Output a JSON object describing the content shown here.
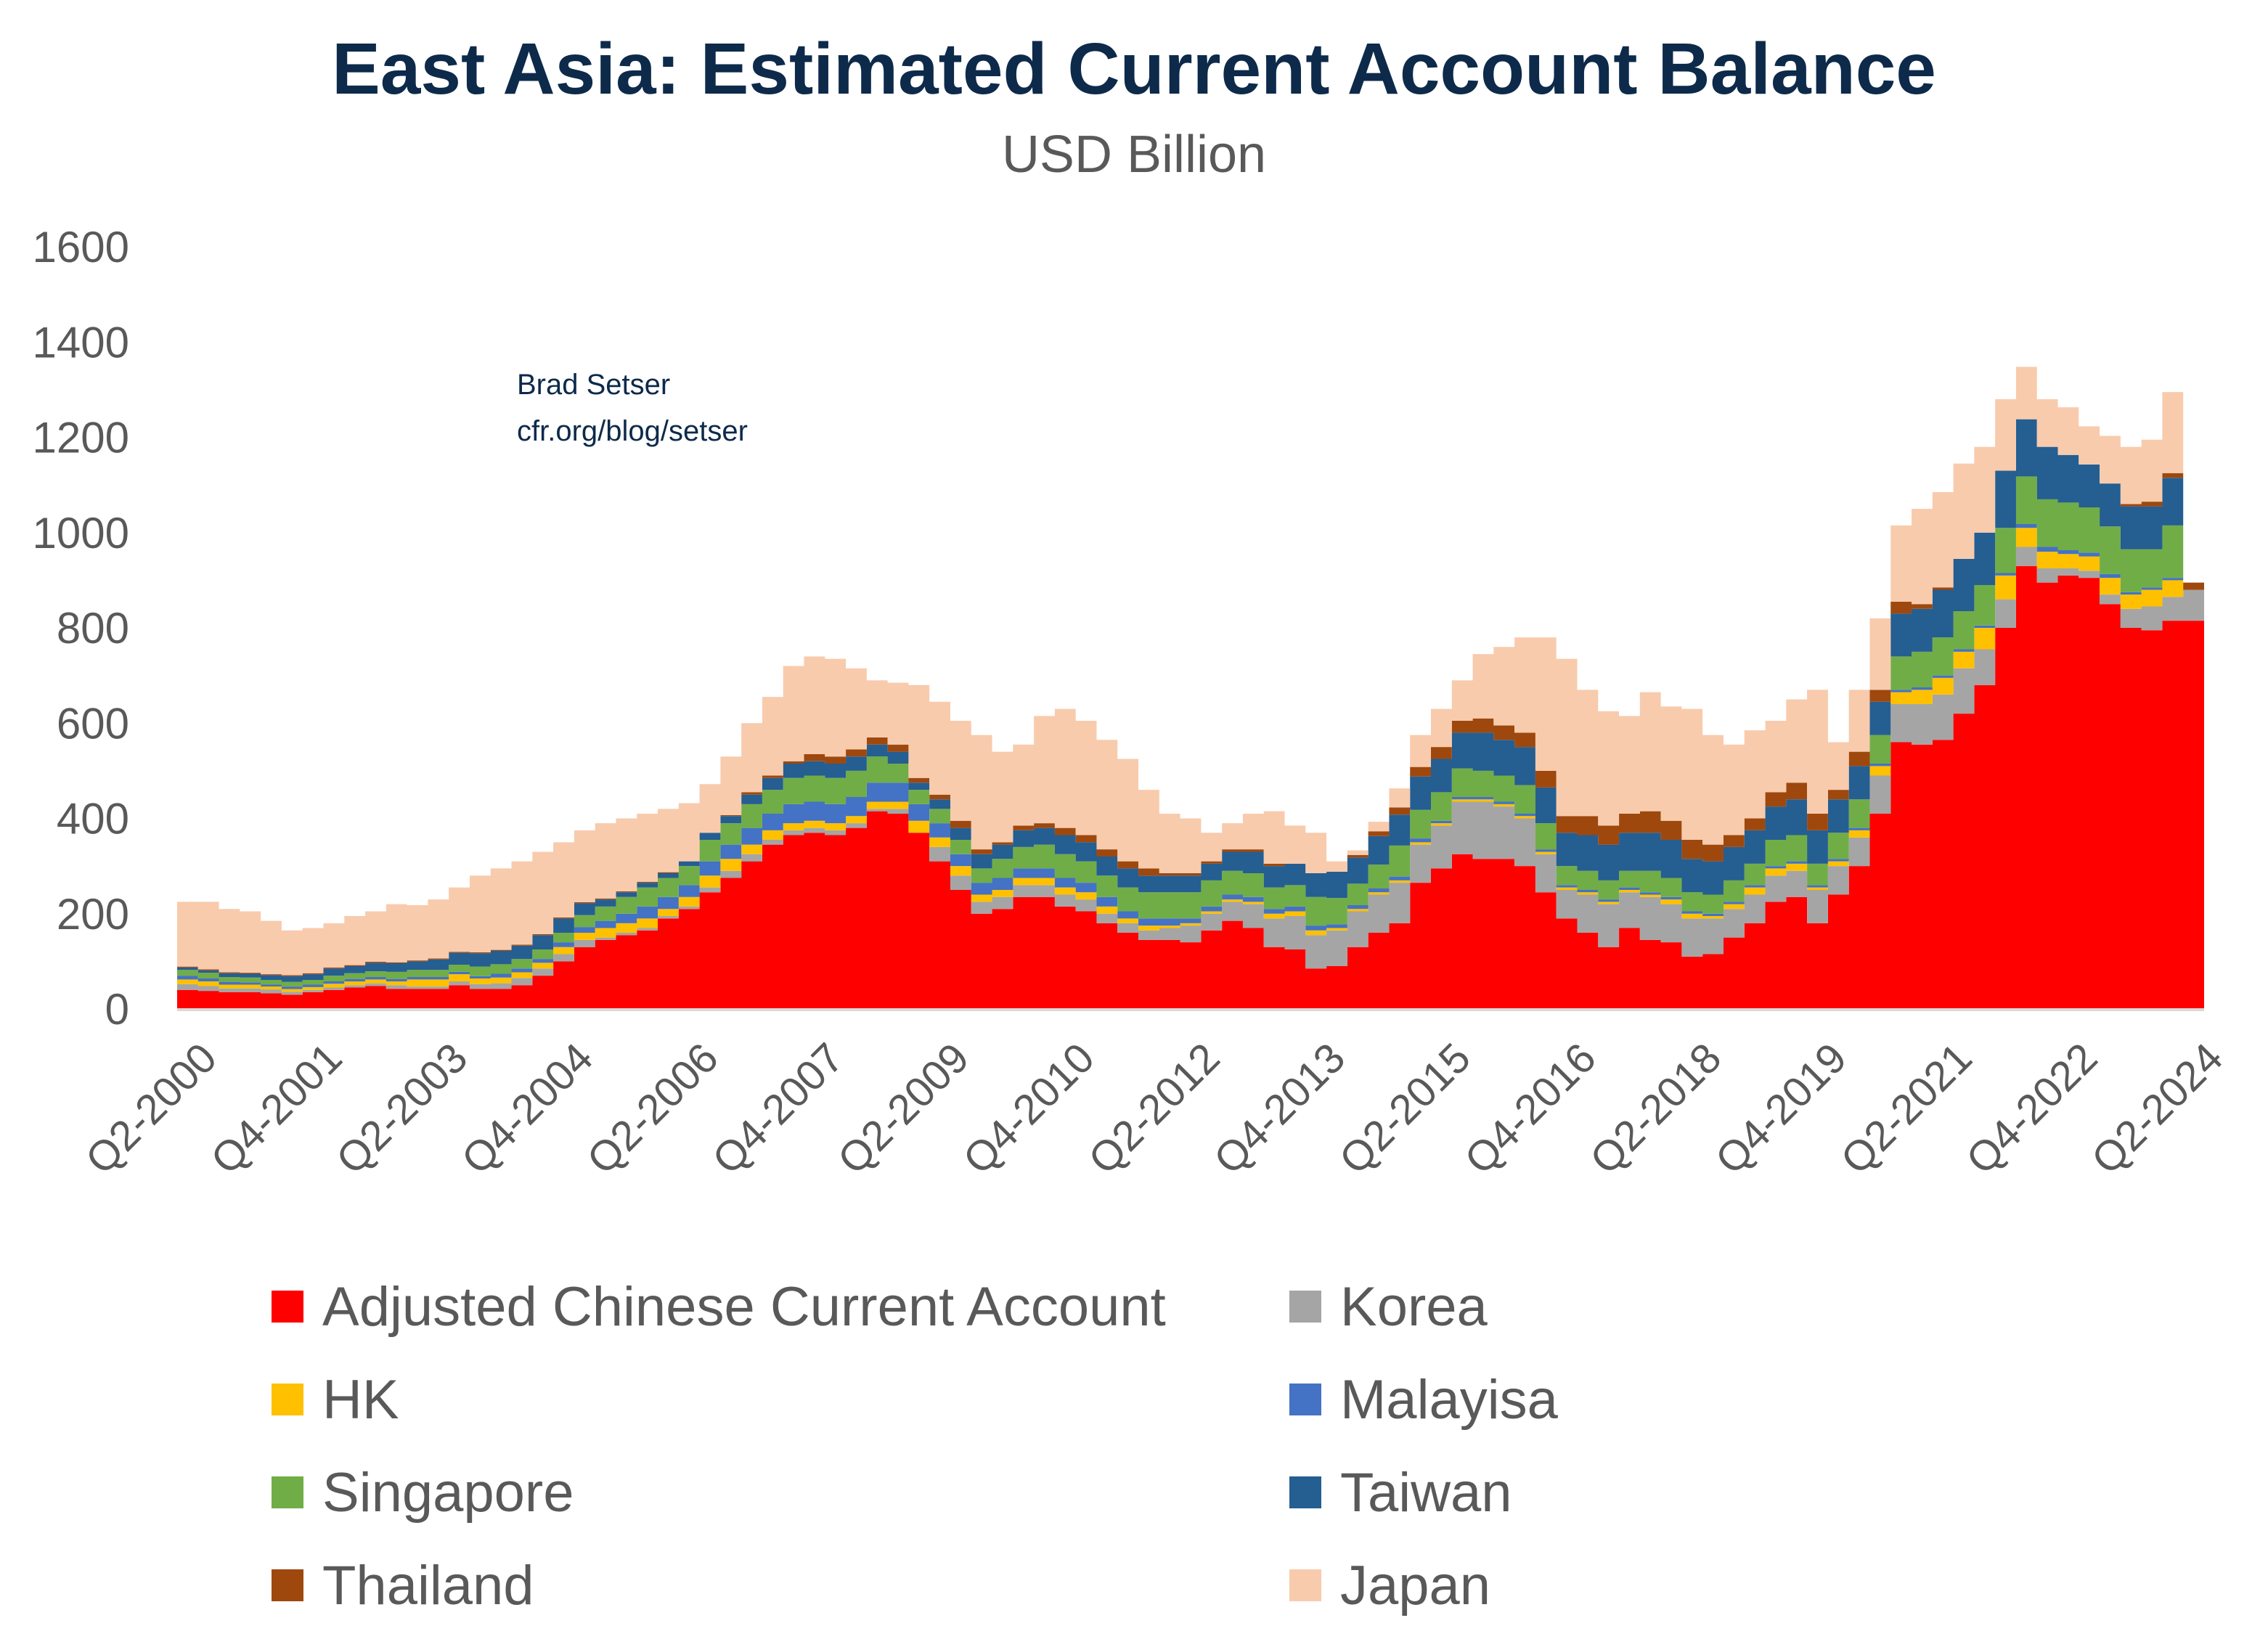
{
  "title": "East Asia: Estimated Current Account Balance",
  "subtitle": "USD Billion",
  "annotation": {
    "author": "Brad Setser",
    "source": "cfr.org/blog/setser"
  },
  "chart_data": {
    "type": "area",
    "stacked": true,
    "step": true,
    "title": "East Asia: Estimated Current Account Balance",
    "ylabel": "USD Billion",
    "ylim": [
      0,
      1600
    ],
    "yticks": [
      0,
      200,
      400,
      600,
      800,
      1000,
      1200,
      1400,
      1600
    ],
    "first_period": "Q2-2000",
    "last_period": "Q2-2024",
    "frequency": "quarterly",
    "xtick_labels": [
      "Q2-2000",
      "Q4-2001",
      "Q2-2003",
      "Q4-2004",
      "Q2-2006",
      "Q4-2007",
      "Q2-2009",
      "Q4-2010",
      "Q2-2012",
      "Q4-2013",
      "Q2-2015",
      "Q4-2016",
      "Q2-2018",
      "Q4-2019",
      "Q2-2021",
      "Q4-2022",
      "Q2-2024"
    ],
    "xtick_every": 6,
    "legend_position": "bottom",
    "grid": false,
    "series": [
      {
        "name": "Adjusted Chinese Current Account",
        "color": "#ff0000",
        "values": [
          40,
          38,
          35,
          35,
          33,
          30,
          35,
          40,
          45,
          48,
          42,
          42,
          42,
          50,
          42,
          42,
          50,
          70,
          100,
          130,
          145,
          155,
          165,
          190,
          210,
          245,
          275,
          310,
          345,
          365,
          370,
          365,
          380,
          415,
          410,
          370,
          310,
          250,
          200,
          210,
          235,
          235,
          215,
          205,
          180,
          160,
          145,
          145,
          140,
          165,
          185,
          170,
          130,
          125,
          85,
          90,
          130,
          160,
          180,
          265,
          295,
          325,
          315,
          315,
          300,
          245,
          190,
          160,
          130,
          170,
          145,
          140,
          110,
          115,
          150,
          180,
          225,
          235,
          180,
          240,
          300,
          410,
          560,
          555,
          565,
          620,
          680,
          800,
          930,
          895,
          910,
          905,
          850,
          800,
          795,
          815,
          815
        ]
      },
      {
        "name": "Korea",
        "color": "#a5a5a5",
        "values": [
          12,
          10,
          8,
          8,
          8,
          6,
          5,
          5,
          5,
          6,
          8,
          5,
          5,
          8,
          10,
          12,
          15,
          15,
          15,
          15,
          5,
          5,
          5,
          5,
          5,
          10,
          15,
          15,
          10,
          10,
          10,
          10,
          10,
          5,
          10,
          -5,
          30,
          30,
          25,
          25,
          25,
          25,
          25,
          25,
          20,
          20,
          20,
          25,
          35,
          35,
          40,
          50,
          60,
          70,
          70,
          75,
          75,
          80,
          85,
          80,
          90,
          110,
          120,
          110,
          100,
          80,
          60,
          80,
          90,
          75,
          90,
          80,
          80,
          75,
          60,
          60,
          55,
          55,
          70,
          60,
          60,
          80,
          80,
          85,
          95,
          95,
          75,
          60,
          40,
          30,
          15,
          15,
          20,
          40,
          50,
          50,
          65
        ]
      },
      {
        "name": "HK",
        "color": "#ffc000",
        "values": [
          10,
          10,
          8,
          8,
          6,
          6,
          6,
          8,
          8,
          8,
          8,
          15,
          15,
          15,
          12,
          12,
          12,
          12,
          15,
          15,
          20,
          20,
          20,
          15,
          20,
          25,
          25,
          20,
          20,
          15,
          15,
          15,
          15,
          15,
          15,
          25,
          20,
          20,
          15,
          15,
          15,
          15,
          15,
          15,
          15,
          10,
          10,
          5,
          5,
          5,
          5,
          5,
          10,
          10,
          10,
          5,
          5,
          5,
          5,
          5,
          5,
          5,
          5,
          5,
          5,
          5,
          5,
          5,
          5,
          5,
          5,
          10,
          10,
          5,
          10,
          15,
          15,
          15,
          5,
          10,
          15,
          20,
          25,
          30,
          35,
          35,
          45,
          50,
          40,
          35,
          30,
          30,
          35,
          30,
          35,
          35,
          0
        ]
      },
      {
        "name": "Malayisa",
        "color": "#4472c4",
        "values": [
          8,
          6,
          6,
          5,
          4,
          5,
          5,
          5,
          5,
          5,
          5,
          5,
          5,
          5,
          5,
          8,
          8,
          8,
          10,
          12,
          15,
          20,
          25,
          25,
          25,
          30,
          30,
          35,
          35,
          40,
          40,
          40,
          40,
          40,
          40,
          35,
          30,
          25,
          25,
          25,
          20,
          20,
          20,
          20,
          20,
          15,
          15,
          15,
          10,
          10,
          10,
          10,
          10,
          10,
          10,
          8,
          8,
          8,
          8,
          8,
          5,
          5,
          5,
          5,
          5,
          5,
          5,
          5,
          5,
          5,
          5,
          5,
          5,
          5,
          5,
          5,
          5,
          5,
          5,
          5,
          5,
          5,
          5,
          5,
          5,
          5,
          5,
          5,
          8,
          10,
          8,
          8,
          8,
          5,
          5,
          5,
          0
        ]
      },
      {
        "name": "Singapore",
        "color": "#70ad47",
        "values": [
          12,
          12,
          10,
          10,
          10,
          10,
          10,
          12,
          12,
          12,
          15,
          15,
          15,
          15,
          20,
          20,
          20,
          20,
          20,
          25,
          30,
          35,
          40,
          40,
          40,
          45,
          45,
          50,
          50,
          55,
          55,
          55,
          55,
          55,
          40,
          30,
          30,
          30,
          30,
          40,
          45,
          50,
          50,
          45,
          45,
          50,
          55,
          55,
          55,
          55,
          50,
          50,
          45,
          45,
          60,
          55,
          45,
          50,
          65,
          60,
          60,
          60,
          55,
          55,
          60,
          55,
          40,
          40,
          40,
          35,
          45,
          40,
          40,
          40,
          45,
          45,
          55,
          55,
          45,
          55,
          60,
          60,
          70,
          75,
          80,
          80,
          85,
          95,
          100,
          100,
          100,
          95,
          100,
          90,
          80,
          110,
          0
        ]
      },
      {
        "name": "Taiwan",
        "color": "#255e91",
        "values": [
          5,
          5,
          8,
          8,
          10,
          12,
          12,
          15,
          15,
          18,
          18,
          18,
          22,
          25,
          28,
          28,
          28,
          30,
          30,
          25,
          15,
          10,
          10,
          10,
          10,
          15,
          15,
          20,
          25,
          30,
          30,
          30,
          30,
          25,
          25,
          15,
          20,
          25,
          30,
          30,
          35,
          35,
          40,
          40,
          40,
          40,
          35,
          35,
          35,
          35,
          40,
          45,
          45,
          45,
          50,
          55,
          55,
          60,
          65,
          70,
          70,
          75,
          80,
          75,
          80,
          75,
          70,
          75,
          75,
          80,
          80,
          80,
          70,
          70,
          70,
          70,
          70,
          75,
          70,
          70,
          70,
          70,
          90,
          90,
          100,
          110,
          110,
          120,
          120,
          110,
          100,
          90,
          90,
          90,
          90,
          100,
          0
        ]
      },
      {
        "name": "Thailand",
        "color": "#9e480e",
        "values": [
          2,
          2,
          2,
          2,
          2,
          2,
          2,
          2,
          2,
          2,
          2,
          2,
          2,
          2,
          2,
          2,
          2,
          2,
          2,
          2,
          2,
          2,
          2,
          2,
          -2,
          -2,
          2,
          5,
          5,
          5,
          15,
          15,
          15,
          15,
          15,
          10,
          10,
          15,
          10,
          5,
          10,
          10,
          15,
          15,
          15,
          15,
          15,
          5,
          5,
          5,
          5,
          5,
          5,
          0,
          -5,
          -5,
          5,
          10,
          15,
          20,
          25,
          25,
          30,
          30,
          30,
          35,
          35,
          40,
          40,
          40,
          45,
          40,
          40,
          35,
          25,
          25,
          30,
          35,
          35,
          20,
          30,
          25,
          25,
          10,
          5,
          0,
          -5,
          0,
          0,
          0,
          -5,
          -5,
          -5,
          5,
          10,
          10,
          15
        ]
      },
      {
        "name": "Japan",
        "color": "#f8cbad",
        "values": [
          136,
          142,
          133,
          129,
          112,
          94,
          95,
          93,
          103,
          106,
          122,
          116,
          124,
          135,
          161,
          171,
          175,
          173,
          158,
          151,
          158,
          153,
          143,
          133,
          122,
          102,
          123,
          145,
          165,
          200,
          205,
          205,
          170,
          120,
          130,
          195,
          195,
          210,
          240,
          190,
          170,
          225,
          250,
          240,
          230,
          215,
          165,
          125,
          115,
          60,
          55,
          75,
          110,
          80,
          85,
          22,
          10,
          20,
          40,
          67,
          80,
          85,
          135,
          165,
          200,
          280,
          330,
          265,
          240,
          205,
          250,
          240,
          275,
          230,
          190,
          185,
          150,
          175,
          260,
          100,
          130,
          150,
          160,
          200,
          200,
          200,
          180,
          150,
          110,
          100,
          100,
          80,
          100,
          120,
          130,
          170,
          0
        ]
      }
    ]
  }
}
